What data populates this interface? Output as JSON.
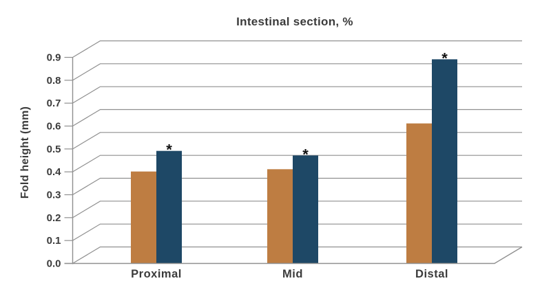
{
  "chart_data": {
    "type": "bar",
    "title": "Intestinal section, %",
    "xlabel": "",
    "ylabel": "Fold height (mm)",
    "categories": [
      "Proximal",
      "Mid",
      "Distal"
    ],
    "series": [
      {
        "color": "#be7d42",
        "values": [
          0.4,
          0.41,
          0.61
        ]
      },
      {
        "color": "#1e4866",
        "values": [
          0.49,
          0.47,
          0.89
        ],
        "point_labels": [
          "*",
          "*",
          "*"
        ]
      }
    ],
    "ylim": [
      0,
      0.9
    ],
    "ytick_step": 0.1,
    "ytick_labels": [
      "0.0",
      "0.1",
      "0.2",
      "0.3",
      "0.4",
      "0.5",
      "0.6",
      "0.7",
      "0.8",
      "0.9"
    ],
    "grid": true,
    "legend": false,
    "style": "pseudo-3d-depth-grid"
  },
  "colors": {
    "background": "#ffffff",
    "grid": "#8f8f8f",
    "axis": "#8f8f8f",
    "text": "#3b3b3b",
    "marker": "#111111"
  }
}
